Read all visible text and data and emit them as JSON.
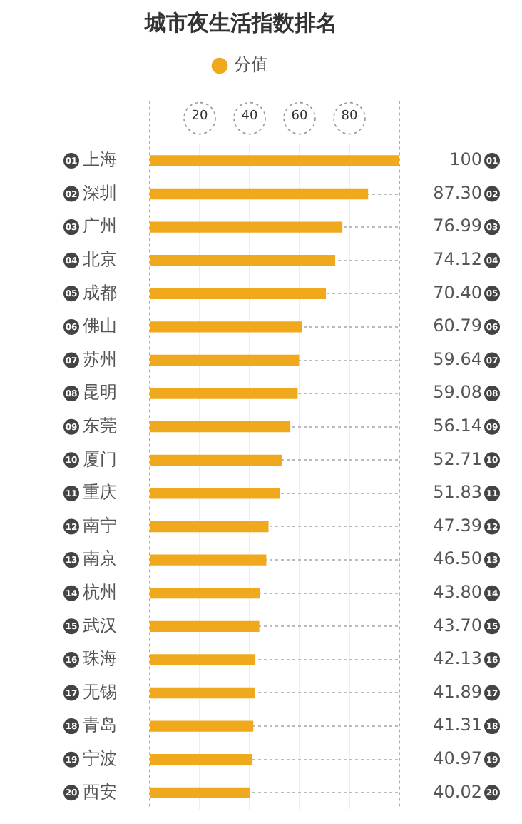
{
  "chart_data": {
    "type": "bar",
    "orientation": "horizontal",
    "title": "城市夜生活指数排名",
    "categories": [
      "上海",
      "深圳",
      "广州",
      "北京",
      "成都",
      "佛山",
      "苏州",
      "昆明",
      "东莞",
      "厦门",
      "重庆",
      "南宁",
      "南京",
      "杭州",
      "武汉",
      "珠海",
      "无锡",
      "青岛",
      "宁波",
      "西安"
    ],
    "series": [
      {
        "name": "分值",
        "color": "#f0a81c",
        "values": [
          100,
          87.3,
          76.99,
          74.12,
          70.4,
          60.79,
          59.64,
          59.08,
          56.14,
          52.71,
          51.83,
          47.39,
          46.5,
          43.8,
          43.7,
          42.13,
          41.89,
          41.31,
          40.97,
          40.02
        ],
        "value_labels": [
          "100",
          "87.30",
          "76.99",
          "74.12",
          "70.40",
          "60.79",
          "59.64",
          "59.08",
          "56.14",
          "52.71",
          "51.83",
          "47.39",
          "46.50",
          "43.80",
          "43.70",
          "42.13",
          "41.89",
          "41.31",
          "40.97",
          "40.02"
        ]
      }
    ],
    "annotations": [
      "01",
      "02",
      "03",
      "04",
      "05",
      "06",
      "07",
      "08",
      "09",
      "10",
      "11",
      "12",
      "13",
      "14",
      "15",
      "16",
      "17",
      "18",
      "19",
      "20"
    ],
    "xlim": [
      0,
      100
    ],
    "xticks": [
      20,
      40,
      60,
      80
    ],
    "grid": true,
    "legend": "top"
  }
}
